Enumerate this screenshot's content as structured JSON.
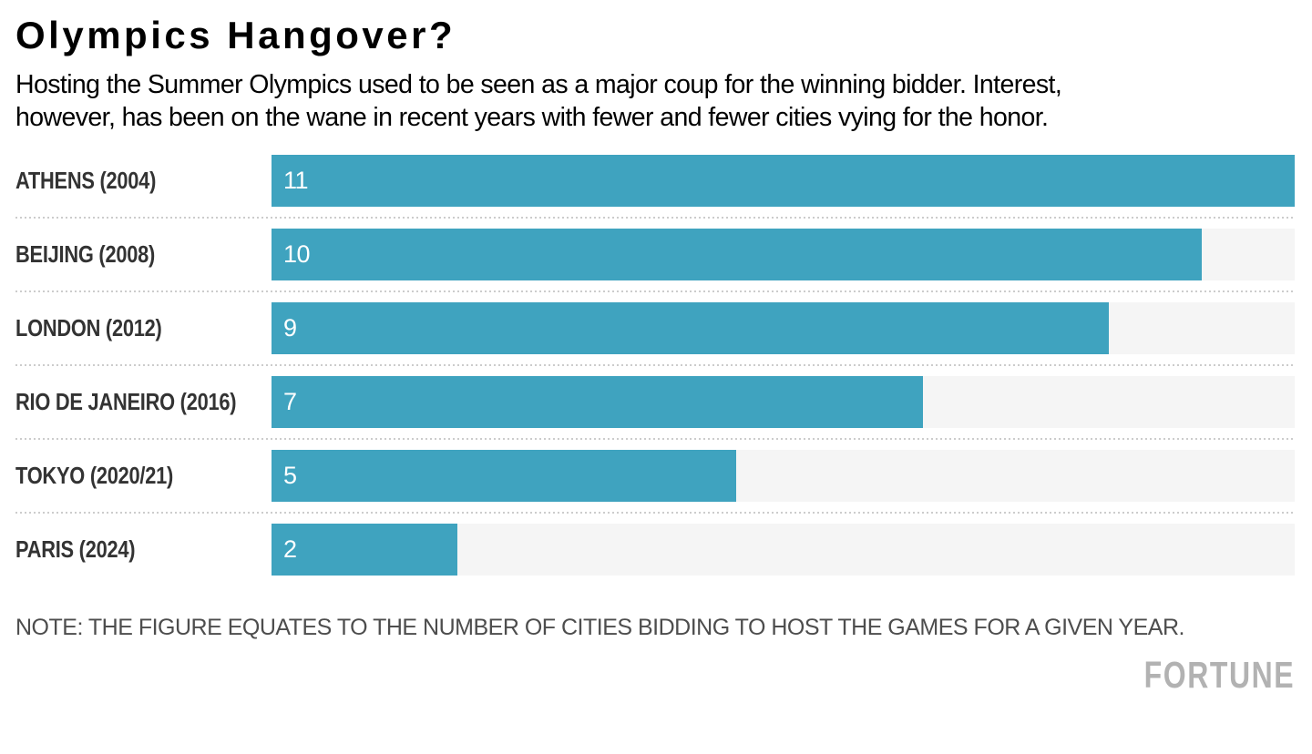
{
  "header": {
    "title": "Olympics Hangover?",
    "subtitle_lines": [
      "Hosting the Summer Olympics used to be seen as a major coup for the winning bidder. Interest,",
      "however, has been on the wane in recent years with fewer and fewer cities vying for the honor."
    ]
  },
  "chart_data": {
    "type": "bar",
    "orientation": "horizontal",
    "title": "Olympics Hangover?",
    "categories": [
      "ATHENS (2004)",
      "BEIJING (2008)",
      "LONDON (2012)",
      "RIO DE JANEIRO (2016)",
      "TOKYO (2020/21)",
      "PARIS (2024)"
    ],
    "values": [
      11,
      10,
      9,
      7,
      5,
      2
    ],
    "xlim": [
      0,
      11
    ],
    "value_labels_inside_bars": true,
    "grid": "dotted-row-separators",
    "legend_position": "none",
    "bar_color": "#3fa3bf",
    "track_color": "#f5f5f5",
    "value_label_color": "#ffffff",
    "note": "NOTE: THE FIGURE EQUATES TO THE NUMBER OF CITIES BIDDING TO HOST THE GAMES FOR A GIVEN YEAR."
  },
  "footer": {
    "note": "NOTE: THE FIGURE EQUATES TO THE NUMBER OF CITIES BIDDING TO HOST THE GAMES FOR A GIVEN YEAR.",
    "brand": "FORTUNE"
  }
}
